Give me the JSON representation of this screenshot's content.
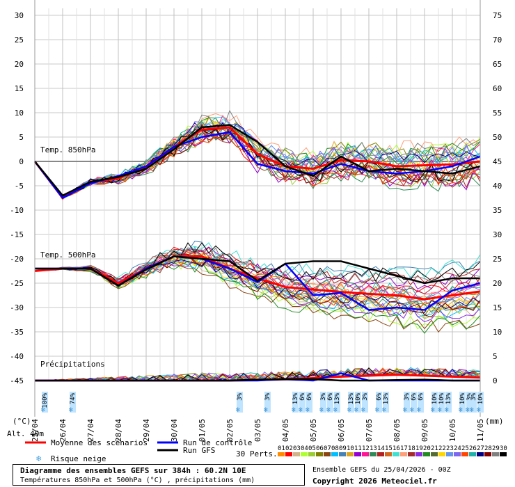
{
  "chart_data": {
    "type": "line",
    "title": "Diagramme des ensembles GEFS sur 384h : 60.2N 10E",
    "subtitle": "Températures 850hPa et 500hPa (°C) , précipitations (mm)",
    "dates": [
      "25/04",
      "26/04",
      "27/04",
      "28/04",
      "29/04",
      "30/04",
      "01/05",
      "02/05",
      "03/05",
      "04/05",
      "05/05",
      "06/05",
      "07/05",
      "08/05",
      "09/05",
      "10/05",
      "11/05"
    ],
    "left_axis_ticks": [
      30,
      25,
      20,
      15,
      10,
      5,
      0,
      -5,
      -10,
      -15,
      -20,
      -25,
      -30,
      -35,
      -40,
      -45
    ],
    "right_axis_ticks": [
      75,
      70,
      65,
      60,
      55,
      50,
      45,
      40,
      35,
      30,
      25,
      20,
      15,
      10,
      5,
      0
    ],
    "left_unit": "(°C)",
    "right_unit": "(mm)",
    "altitude": "Alt. 40m",
    "panel_labels": {
      "t850": "Temp. 850hPa",
      "t500": "Temp. 500hPa",
      "precip": "Précipitations"
    },
    "series": [
      {
        "name": "Moyenne des scénarios",
        "color": "#ff0000",
        "t850": [
          0,
          -7.5,
          -4.2,
          -3.5,
          -1,
          3,
          6.5,
          7,
          1.5,
          -1,
          -1.5,
          0.3,
          0,
          -1,
          -0.8,
          -0.6,
          0
        ],
        "t500": [
          -22.5,
          -22,
          -22,
          -25,
          -22,
          -19.5,
          -19.5,
          -22,
          -24,
          -25.8,
          -26.3,
          -26.8,
          -27.2,
          -27.5,
          -28.3,
          -27.5,
          -26.7
        ],
        "precip": [
          0,
          0,
          0,
          0,
          0,
          0,
          0,
          0,
          0.1,
          0.3,
          0.5,
          0.8,
          1,
          1.2,
          1,
          0.8,
          0.6
        ]
      },
      {
        "name": "Run de contrôle",
        "color": "#0000ff",
        "t850": [
          0,
          -7.5,
          -4.5,
          -3,
          -1,
          3,
          5,
          6,
          -0.5,
          -2,
          -2.5,
          -0.5,
          -2,
          -2.5,
          -2,
          -1,
          1
        ],
        "t500": [
          -22,
          -22,
          -22,
          -25.5,
          -22,
          -19.5,
          -20,
          -22,
          -24.8,
          -21,
          -27.5,
          -27,
          -30.5,
          -30,
          -30.5,
          -26.5,
          -25
        ],
        "precip": [
          0,
          0,
          0,
          0,
          0,
          0,
          0,
          0,
          0,
          0.3,
          0,
          1.5,
          0,
          0,
          0,
          0,
          0
        ]
      },
      {
        "name": "Run GFS",
        "color": "#000000",
        "t850": [
          0,
          -7,
          -4.2,
          -3.2,
          -1.5,
          2.5,
          7,
          7.5,
          4,
          -1,
          -3,
          1,
          -2,
          -1.5,
          -2,
          -2.5,
          -1
        ],
        "t500": [
          -22,
          -22,
          -22,
          -25.5,
          -22.2,
          -19.5,
          -20,
          -20.5,
          -24.5,
          -21,
          -20.5,
          -20.5,
          -22,
          -23.5,
          -25,
          -24,
          -24
        ],
        "precip": [
          0,
          0,
          0,
          0,
          0,
          0,
          0,
          0,
          0.2,
          0.3,
          0.3,
          0,
          0,
          0.1,
          0.2,
          0,
          0
        ]
      }
    ],
    "snow_risk": [
      {
        "date": "25/04",
        "percent": "100%"
      },
      {
        "date": "26/04",
        "percent": "74%"
      },
      {
        "date": "02/05",
        "percent": "3%"
      },
      {
        "date": "03/05",
        "percent": "3%"
      },
      {
        "date": "04/05",
        "percent": "13%"
      },
      {
        "date": "04/05",
        "percent": "6%"
      },
      {
        "date": "04/05",
        "percent": "6%"
      },
      {
        "date": "05/05",
        "percent": "3%"
      },
      {
        "date": "05/05",
        "percent": "6%"
      },
      {
        "date": "05/05",
        "percent": "13%"
      },
      {
        "date": "06/05",
        "percent": "13%"
      },
      {
        "date": "06/05",
        "percent": "10%"
      },
      {
        "date": "06/05",
        "percent": "3%"
      },
      {
        "date": "07/05",
        "percent": "6%"
      },
      {
        "date": "07/05",
        "percent": "13%"
      },
      {
        "date": "08/05",
        "percent": "3%"
      },
      {
        "date": "08/05",
        "percent": "6%"
      },
      {
        "date": "08/05",
        "percent": "6%"
      },
      {
        "date": "09/05",
        "percent": "10%"
      },
      {
        "date": "09/05",
        "percent": "10%"
      },
      {
        "date": "09/05",
        "percent": "13%"
      },
      {
        "date": "10/05",
        "percent": "10%"
      },
      {
        "date": "10/05",
        "percent": "3%"
      },
      {
        "date": "11/05",
        "percent": "3%"
      },
      {
        "date": "11/05",
        "percent": "10%"
      }
    ],
    "perturbations": {
      "label": "30 Perts.",
      "ids": [
        "01",
        "02",
        "03",
        "04",
        "05",
        "06",
        "07",
        "08",
        "09",
        "10",
        "11",
        "12",
        "13",
        "14",
        "15",
        "16",
        "17",
        "18",
        "19",
        "20",
        "21",
        "22",
        "23",
        "24",
        "25",
        "26",
        "27",
        "28",
        "29",
        "30"
      ],
      "colors": [
        "#ff8c00",
        "#ff0000",
        "#d2b48c",
        "#adff2f",
        "#9acd32",
        "#808000",
        "#8b4513",
        "#00bfff",
        "#4682b4",
        "#daa520",
        "#9400d3",
        "#ff1493",
        "#2e8b57",
        "#b22222",
        "#d2691e",
        "#40e0d0",
        "#ffa07a",
        "#a52a2a",
        "#8a2be2",
        "#228b22",
        "#556b2f",
        "#ffd700",
        "#6495ed",
        "#7b68ee",
        "#ff4500",
        "#20b2aa",
        "#000080",
        "#800000",
        "#808080",
        "#000000"
      ]
    },
    "legend": {
      "mean": "Moyenne des scénarios",
      "control": "Run de contrôle",
      "gfs": "Run GFS",
      "snow": "Risque neige"
    }
  },
  "footer": {
    "title": "Diagramme des ensembles GEFS sur 384h : 60.2N 10E",
    "subtitle": "Températures 850hPa et 500hPa (°C) , précipitations (mm)",
    "ensemble": "Ensemble GEFS du 25/04/2026 - 00Z",
    "copyright": "Copyright 2026 Meteociel.fr"
  }
}
